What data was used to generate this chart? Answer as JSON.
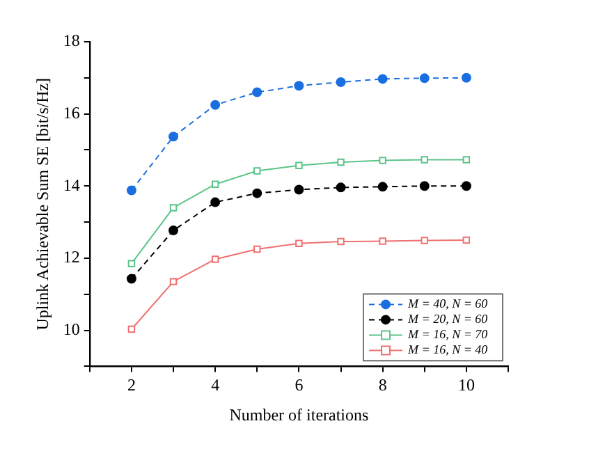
{
  "chart_data": {
    "type": "line",
    "xlabel": "Number of iterations",
    "ylabel": "Uplink Achievable Sum SE [bit/s/Hz]",
    "x": [
      2,
      3,
      4,
      5,
      6,
      7,
      8,
      9,
      10
    ],
    "series": [
      {
        "name": "M = 40, N = 60",
        "color": "#1a6fe0",
        "marker": "circle",
        "line_style": "dashed",
        "values": [
          13.88,
          15.37,
          16.25,
          16.6,
          16.78,
          16.88,
          16.97,
          16.99,
          17.0
        ]
      },
      {
        "name": "M = 20, N = 60",
        "color": "#000000",
        "marker": "circle",
        "line_style": "dashed",
        "values": [
          11.43,
          12.77,
          13.55,
          13.8,
          13.9,
          13.96,
          13.98,
          14.0,
          14.0
        ]
      },
      {
        "name": "M = 16, N = 70",
        "color": "#5cc489",
        "marker": "square",
        "line_style": "solid",
        "values": [
          11.85,
          13.4,
          14.05,
          14.42,
          14.57,
          14.66,
          14.71,
          14.73,
          14.73
        ]
      },
      {
        "name": "M = 16, N = 40",
        "color": "#f07070",
        "marker": "square",
        "line_style": "solid",
        "values": [
          10.03,
          11.35,
          11.97,
          12.25,
          12.41,
          12.46,
          12.47,
          12.49,
          12.5
        ]
      }
    ],
    "xlim": [
      1,
      11
    ],
    "xticks": [
      {
        "value": 1,
        "label": null
      },
      2,
      {
        "value": 3,
        "label": null
      },
      4,
      {
        "value": 5,
        "label": null
      },
      6,
      {
        "value": 7,
        "label": null
      },
      8,
      {
        "value": 9,
        "label": null
      },
      10,
      {
        "value": 11,
        "label": null
      }
    ],
    "ylim": [
      9,
      18
    ],
    "yticks": [
      {
        "value": 9,
        "label": null
      },
      10,
      {
        "value": 11,
        "label": null
      },
      12,
      {
        "value": 13,
        "label": null
      },
      14,
      {
        "value": 15,
        "label": null
      },
      16,
      {
        "value": 17,
        "label": null
      },
      18
    ],
    "grid": false,
    "legend": "bottom right"
  }
}
